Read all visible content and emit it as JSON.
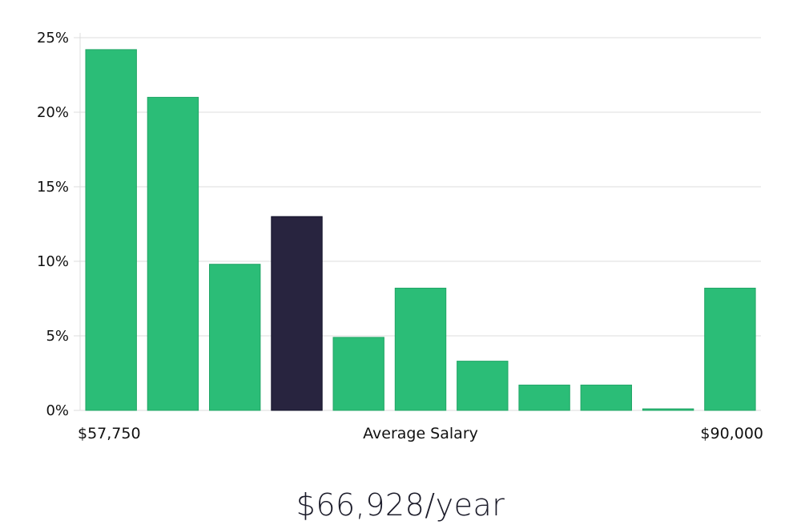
{
  "chart_data": {
    "type": "bar",
    "title": "",
    "xlabel": "Average Salary",
    "ylabel": "",
    "x_min_label": "$57,750",
    "x_max_label": "$90,000",
    "ylim": [
      0,
      25
    ],
    "y_ticks": [
      0,
      5,
      10,
      15,
      20,
      25
    ],
    "y_tick_labels": [
      "0%",
      "5%",
      "10%",
      "15%",
      "20%",
      "25%"
    ],
    "values": [
      24.2,
      21.0,
      9.8,
      13.0,
      4.9,
      8.2,
      3.3,
      1.7,
      1.7,
      0.1,
      8.2
    ],
    "highlight_index": 3,
    "colors": {
      "bar": "#2bbd77",
      "highlight": "#28243f",
      "grid": "#dcdcdc"
    }
  },
  "summary": {
    "salary_text": "$66,928/year"
  }
}
